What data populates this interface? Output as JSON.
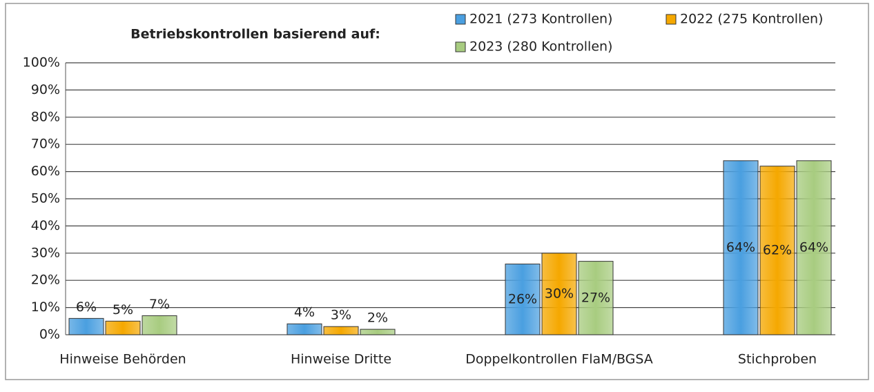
{
  "chart_data": {
    "type": "bar",
    "title": "Betriebskontrollen basierend auf:",
    "categories": [
      "Hinweise Behörden",
      "Hinweise Dritte",
      "Doppelkontrollen FlaM/BGSA",
      "Stichproben"
    ],
    "series": [
      {
        "name": "2021 (273 Kontrollen)",
        "color": "#4a9fe0",
        "values": [
          6,
          4,
          26,
          64
        ],
        "value_labels": [
          "6%",
          "4%",
          "26%",
          "64%"
        ]
      },
      {
        "name": "2022 (275 Kontrollen)",
        "color": "#f5a800",
        "values": [
          5,
          3,
          30,
          62
        ],
        "value_labels": [
          "5%",
          "3%",
          "30%",
          "62%"
        ]
      },
      {
        "name": "2023 (280 Kontrollen)",
        "color": "#a8cc80",
        "values": [
          7,
          2,
          27,
          64
        ],
        "value_labels": [
          "7%",
          "2%",
          "27%",
          "64%"
        ]
      }
    ],
    "ylim": [
      0,
      100
    ],
    "yticks": [
      {
        "value": 0,
        "label": "0%"
      },
      {
        "value": 10,
        "label": "10%"
      },
      {
        "value": 20,
        "label": "20%"
      },
      {
        "value": 30,
        "label": "30%"
      },
      {
        "value": 40,
        "label": "40%"
      },
      {
        "value": 50,
        "label": "50%"
      },
      {
        "value": 60,
        "label": "60%"
      },
      {
        "value": 70,
        "label": "70%"
      },
      {
        "value": 80,
        "label": "80%"
      },
      {
        "value": 90,
        "label": "90%"
      },
      {
        "value": 100,
        "label": "100%"
      }
    ],
    "grid": true
  }
}
